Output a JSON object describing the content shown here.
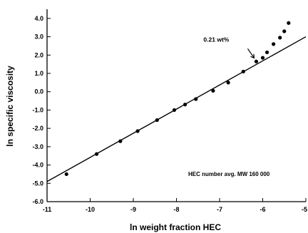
{
  "chart_data": {
    "type": "scatter",
    "xlabel": "ln weight fraction HEC",
    "ylabel": "ln specific viscosity",
    "xlim": [
      -11,
      -5
    ],
    "ylim": [
      -6.0,
      4.5
    ],
    "x_ticks": [
      -11,
      -10,
      -9,
      -8,
      -7,
      -6,
      -5
    ],
    "x_tick_labels": [
      "-11",
      "-10",
      "-9",
      "-8",
      "-7",
      "-6",
      "-5"
    ],
    "y_ticks": [
      4.0,
      3.0,
      2.0,
      1.0,
      0.0,
      -1.0,
      -2.0,
      -3.0,
      -4.0,
      -5.0,
      -6.0
    ],
    "y_tick_labels": [
      "4.0",
      "3.0",
      "2.0",
      "1.0",
      "0.0",
      "-1.0",
      "-2.0",
      "-3.0",
      "-4.0",
      "-5.0",
      "-6.0"
    ],
    "grid": false,
    "points": {
      "x": [
        -10.55,
        -9.85,
        -9.3,
        -8.9,
        -8.45,
        -8.05,
        -7.8,
        -7.55,
        -7.15,
        -6.8,
        -6.45,
        -6.15,
        -6.0,
        -5.9,
        -5.75,
        -5.6,
        -5.5,
        -5.4
      ],
      "y": [
        -4.5,
        -3.4,
        -2.7,
        -2.15,
        -1.55,
        -1.0,
        -0.7,
        -0.4,
        0.05,
        0.5,
        1.1,
        1.65,
        1.85,
        2.15,
        2.6,
        2.95,
        3.3,
        3.75
      ]
    },
    "fit_line": {
      "x": [
        -11.0,
        -5.0
      ],
      "y": [
        -4.9,
        3.0
      ]
    },
    "annotations": [
      {
        "text": "0.21 wt%",
        "x": -6.15,
        "y": 1.65
      }
    ],
    "note": "HEC number avg. MW 160 000"
  }
}
